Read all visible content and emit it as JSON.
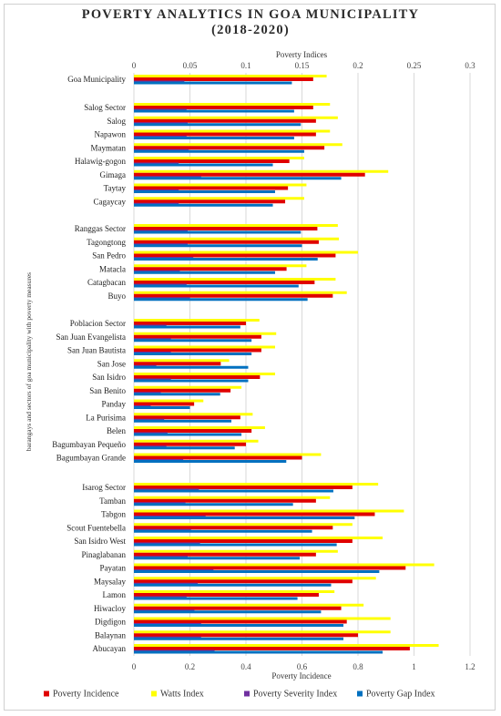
{
  "chart_data": {
    "type": "bar",
    "orientation": "horizontal",
    "title_line1": "POVERTY ANALYTICS IN GOA MUNICIPALITY",
    "title_line2": "(2018-2020)",
    "top_axis_label": "Poverty Indices",
    "bottom_axis_label": "Poverty Incidence",
    "y_axis_label": "barangays and sectors of goa municipality with poverty measures",
    "top_axis": {
      "range": [
        0,
        0.3
      ],
      "ticks": [
        "0",
        "0.05",
        "0.1",
        "0.15",
        "0.2",
        "0.25",
        "0.3"
      ]
    },
    "bottom_axis": {
      "range": [
        0,
        1.2
      ],
      "ticks": [
        "0",
        "0.2",
        "0.4",
        "0.6",
        "0.8",
        "1",
        "1.2"
      ]
    },
    "grid": true,
    "legend_position": "bottom",
    "series": [
      {
        "name": "Poverty Incidence",
        "axis": "bottom",
        "color": "#e00000"
      },
      {
        "name": "Watts Index",
        "axis": "top",
        "color": "#ffff00"
      },
      {
        "name": "Poverty Severity Index",
        "axis": "top",
        "color": "#7030a0"
      },
      {
        "name": "Poverty Gap Index",
        "axis": "top",
        "color": "#0070c0"
      }
    ],
    "groups": [
      {
        "rows": [
          {
            "label": "Goa Municipality",
            "watts": 0.172,
            "incidence": 0.64,
            "severity": 0.045,
            "gap": 0.141
          }
        ]
      },
      {
        "rows": [
          {
            "label": "Salog Sector",
            "watts": 0.175,
            "incidence": 0.64,
            "severity": 0.047,
            "gap": 0.143
          },
          {
            "label": "Salog",
            "watts": 0.182,
            "incidence": 0.65,
            "severity": 0.048,
            "gap": 0.149
          },
          {
            "label": "Napawon",
            "watts": 0.175,
            "incidence": 0.65,
            "severity": 0.047,
            "gap": 0.143
          },
          {
            "label": "Maymatan",
            "watts": 0.186,
            "incidence": 0.68,
            "severity": 0.049,
            "gap": 0.152
          },
          {
            "label": "Halawig-gogon",
            "watts": 0.152,
            "incidence": 0.555,
            "severity": 0.04,
            "gap": 0.124
          },
          {
            "label": "Gimaga",
            "watts": 0.227,
            "incidence": 0.825,
            "severity": 0.06,
            "gap": 0.185
          },
          {
            "label": "Taytay",
            "watts": 0.154,
            "incidence": 0.55,
            "severity": 0.04,
            "gap": 0.126
          },
          {
            "label": "Cagaycay",
            "watts": 0.152,
            "incidence": 0.54,
            "severity": 0.04,
            "gap": 0.124
          }
        ]
      },
      {
        "rows": [
          {
            "label": "Ranggas Sector",
            "watts": 0.182,
            "incidence": 0.655,
            "severity": 0.048,
            "gap": 0.149
          },
          {
            "label": "Tagongtong",
            "watts": 0.183,
            "incidence": 0.66,
            "severity": 0.048,
            "gap": 0.15
          },
          {
            "label": "San Pedro",
            "watts": 0.2,
            "incidence": 0.72,
            "severity": 0.053,
            "gap": 0.164
          },
          {
            "label": "Matacla",
            "watts": 0.154,
            "incidence": 0.545,
            "severity": 0.041,
            "gap": 0.126
          },
          {
            "label": "Catagbacan",
            "watts": 0.18,
            "incidence": 0.645,
            "severity": 0.047,
            "gap": 0.147
          },
          {
            "label": "Buyo",
            "watts": 0.19,
            "incidence": 0.71,
            "severity": 0.05,
            "gap": 0.155
          }
        ]
      },
      {
        "rows": [
          {
            "label": "Poblacion Sector",
            "watts": 0.112,
            "incidence": 0.4,
            "severity": 0.029,
            "gap": 0.095
          },
          {
            "label": "San Juan Evangelista",
            "watts": 0.127,
            "incidence": 0.455,
            "severity": 0.033,
            "gap": 0.105
          },
          {
            "label": "San Juan Bautista",
            "watts": 0.126,
            "incidence": 0.455,
            "severity": 0.033,
            "gap": 0.105
          },
          {
            "label": "San Jose",
            "watts": 0.085,
            "incidence": 0.31,
            "severity": 0.02,
            "gap": 0.102
          },
          {
            "label": "San Isidro",
            "watts": 0.126,
            "incidence": 0.45,
            "severity": 0.033,
            "gap": 0.102
          },
          {
            "label": "San  Benito",
            "watts": 0.096,
            "incidence": 0.345,
            "severity": 0.024,
            "gap": 0.077
          },
          {
            "label": "Panday",
            "watts": 0.062,
            "incidence": 0.215,
            "severity": 0.015,
            "gap": 0.05
          },
          {
            "label": "La Purisima",
            "watts": 0.106,
            "incidence": 0.38,
            "severity": 0.027,
            "gap": 0.087
          },
          {
            "label": "Belen",
            "watts": 0.117,
            "incidence": 0.42,
            "severity": 0.03,
            "gap": 0.096
          },
          {
            "label": "Bagumbayan Pequeño",
            "watts": 0.111,
            "incidence": 0.4,
            "severity": 0.029,
            "gap": 0.09
          },
          {
            "label": "Bagumbayan Grande",
            "watts": 0.167,
            "incidence": 0.6,
            "severity": 0.044,
            "gap": 0.136
          }
        ]
      },
      {
        "rows": [
          {
            "label": "Isarog Sector",
            "watts": 0.218,
            "incidence": 0.78,
            "severity": 0.058,
            "gap": 0.178
          },
          {
            "label": "Tamban",
            "watts": 0.175,
            "incidence": 0.65,
            "severity": 0.046,
            "gap": 0.142
          },
          {
            "label": "Tabgon",
            "watts": 0.241,
            "incidence": 0.86,
            "severity": 0.064,
            "gap": 0.197
          },
          {
            "label": "Scout Fuentebella",
            "watts": 0.195,
            "incidence": 0.71,
            "severity": 0.051,
            "gap": 0.159
          },
          {
            "label": "San Isidro West",
            "watts": 0.222,
            "incidence": 0.78,
            "severity": 0.059,
            "gap": 0.181
          },
          {
            "label": "Pinaglabanan",
            "watts": 0.182,
            "incidence": 0.65,
            "severity": 0.048,
            "gap": 0.148
          },
          {
            "label": "Payatan",
            "watts": 0.268,
            "incidence": 0.97,
            "severity": 0.071,
            "gap": 0.219
          },
          {
            "label": "Maysalay",
            "watts": 0.216,
            "incidence": 0.78,
            "severity": 0.057,
            "gap": 0.176
          },
          {
            "label": "Lamon",
            "watts": 0.179,
            "incidence": 0.66,
            "severity": 0.047,
            "gap": 0.146
          },
          {
            "label": "Hiwacloy",
            "watts": 0.205,
            "incidence": 0.74,
            "severity": 0.054,
            "gap": 0.167
          },
          {
            "label": "Digdigon",
            "watts": 0.229,
            "incidence": 0.76,
            "severity": 0.06,
            "gap": 0.187
          },
          {
            "label": "Balaynan",
            "watts": 0.229,
            "incidence": 0.8,
            "severity": 0.06,
            "gap": 0.187
          },
          {
            "label": "Abucayan",
            "watts": 0.272,
            "incidence": 0.985,
            "severity": 0.072,
            "gap": 0.222
          }
        ]
      }
    ]
  }
}
